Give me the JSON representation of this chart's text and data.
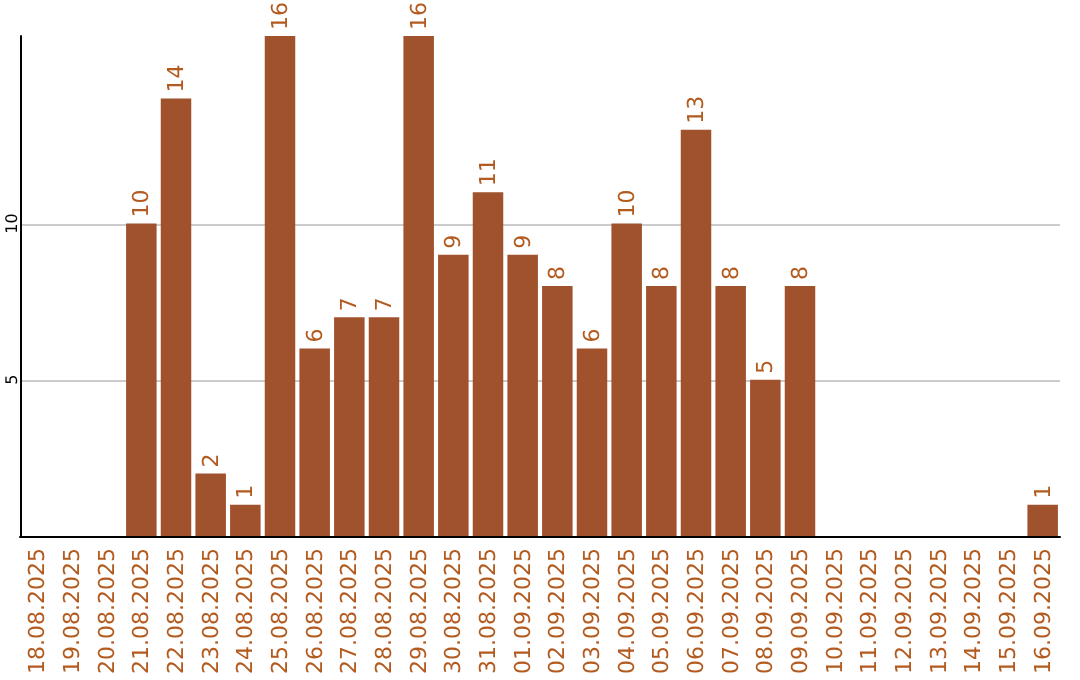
{
  "chart_data": {
    "type": "bar",
    "categories": [
      "18.08.2025",
      "19.08.2025",
      "20.08.2025",
      "21.08.2025",
      "22.08.2025",
      "23.08.2025",
      "24.08.2025",
      "25.08.2025",
      "26.08.2025",
      "27.08.2025",
      "28.08.2025",
      "29.08.2025",
      "30.08.2025",
      "31.08.2025",
      "01.09.2025",
      "02.09.2025",
      "03.09.2025",
      "04.09.2025",
      "05.09.2025",
      "06.09.2025",
      "07.09.2025",
      "08.09.2025",
      "09.09.2025",
      "10.09.2025",
      "11.09.2025",
      "12.09.2025",
      "13.09.2025",
      "14.09.2025",
      "15.09.2025",
      "16.09.2025"
    ],
    "values": [
      0,
      0,
      0,
      10,
      14,
      2,
      1,
      16,
      6,
      7,
      7,
      16,
      9,
      11,
      9,
      8,
      6,
      10,
      8,
      13,
      8,
      5,
      8,
      0,
      0,
      0,
      0,
      0,
      0,
      1
    ],
    "value_labels": [
      null,
      null,
      null,
      "10",
      "14",
      "2",
      "1",
      "16",
      "6",
      "7",
      "7",
      "16",
      "9",
      "11",
      "9",
      "8",
      "6",
      "10",
      "8",
      "13",
      "8",
      "5",
      "8",
      null,
      null,
      null,
      null,
      null,
      null,
      "1"
    ],
    "color": "#a0522d",
    "ylim": [
      0,
      16
    ],
    "yticks": [
      5,
      10
    ],
    "grid": "y"
  }
}
